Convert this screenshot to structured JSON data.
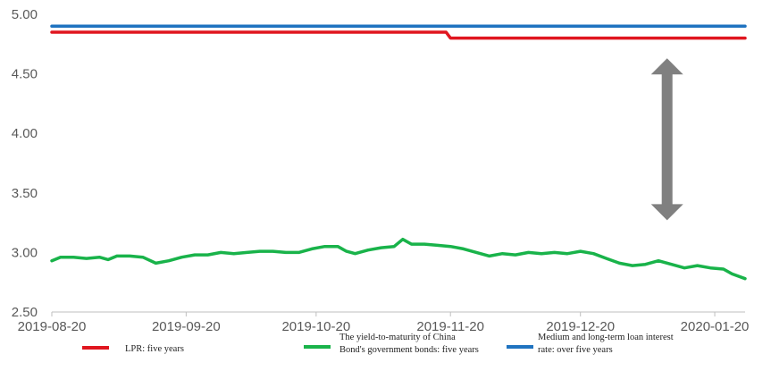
{
  "chart_data": {
    "type": "line",
    "x_domain": [
      "2019-08-20",
      "2020-01-27"
    ],
    "ylim": [
      2.5,
      5.0
    ],
    "y_ticks": [
      "2.50",
      "3.00",
      "3.50",
      "4.00",
      "4.50",
      "5.00"
    ],
    "y_tick_values": [
      2.5,
      3.0,
      3.5,
      4.0,
      4.5,
      5.0
    ],
    "x_ticks": [
      "2019-08-20",
      "2019-09-20",
      "2019-10-20",
      "2019-11-20",
      "2019-12-20",
      "2020-01-20"
    ],
    "grid": false,
    "legend_placement": "bottom",
    "series": [
      {
        "name": "LPR: five years",
        "color": "#e0161f",
        "points": [
          [
            "2019-08-20",
            4.85
          ],
          [
            "2019-11-19",
            4.85
          ],
          [
            "2019-11-20",
            4.8
          ],
          [
            "2020-01-27",
            4.8
          ]
        ]
      },
      {
        "name": "Medium and long-term loan interest rate: over five years",
        "color": "#1f73c0",
        "points": [
          [
            "2019-08-20",
            4.9
          ],
          [
            "2020-01-27",
            4.9
          ]
        ]
      },
      {
        "name": "The yield-to-maturity of China Bond's government bonds: five years",
        "color": "#19b34a",
        "points": [
          [
            "2019-08-20",
            2.93
          ],
          [
            "2019-08-22",
            2.96
          ],
          [
            "2019-08-25",
            2.96
          ],
          [
            "2019-08-28",
            2.95
          ],
          [
            "2019-08-31",
            2.96
          ],
          [
            "2019-09-02",
            2.94
          ],
          [
            "2019-09-04",
            2.97
          ],
          [
            "2019-09-07",
            2.97
          ],
          [
            "2019-09-10",
            2.96
          ],
          [
            "2019-09-13",
            2.91
          ],
          [
            "2019-09-16",
            2.93
          ],
          [
            "2019-09-19",
            2.96
          ],
          [
            "2019-09-22",
            2.98
          ],
          [
            "2019-09-25",
            2.98
          ],
          [
            "2019-09-28",
            3.0
          ],
          [
            "2019-10-01",
            2.99
          ],
          [
            "2019-10-04",
            3.0
          ],
          [
            "2019-10-07",
            3.01
          ],
          [
            "2019-10-10",
            3.01
          ],
          [
            "2019-10-13",
            3.0
          ],
          [
            "2019-10-16",
            3.0
          ],
          [
            "2019-10-19",
            3.03
          ],
          [
            "2019-10-22",
            3.05
          ],
          [
            "2019-10-25",
            3.05
          ],
          [
            "2019-10-27",
            3.01
          ],
          [
            "2019-10-29",
            2.99
          ],
          [
            "2019-11-01",
            3.02
          ],
          [
            "2019-11-04",
            3.04
          ],
          [
            "2019-11-07",
            3.05
          ],
          [
            "2019-11-09",
            3.11
          ],
          [
            "2019-11-11",
            3.07
          ],
          [
            "2019-11-14",
            3.07
          ],
          [
            "2019-11-17",
            3.06
          ],
          [
            "2019-11-20",
            3.05
          ],
          [
            "2019-11-23",
            3.03
          ],
          [
            "2019-11-26",
            3.0
          ],
          [
            "2019-11-29",
            2.97
          ],
          [
            "2019-12-02",
            2.99
          ],
          [
            "2019-12-05",
            2.98
          ],
          [
            "2019-12-08",
            3.0
          ],
          [
            "2019-12-11",
            2.99
          ],
          [
            "2019-12-14",
            3.0
          ],
          [
            "2019-12-17",
            2.99
          ],
          [
            "2019-12-20",
            3.01
          ],
          [
            "2019-12-23",
            2.99
          ],
          [
            "2019-12-26",
            2.95
          ],
          [
            "2019-12-29",
            2.91
          ],
          [
            "2020-01-01",
            2.89
          ],
          [
            "2020-01-04",
            2.9
          ],
          [
            "2020-01-07",
            2.93
          ],
          [
            "2020-01-10",
            2.9
          ],
          [
            "2020-01-13",
            2.87
          ],
          [
            "2020-01-16",
            2.89
          ],
          [
            "2020-01-19",
            2.87
          ],
          [
            "2020-01-22",
            2.86
          ],
          [
            "2020-01-24",
            2.82
          ],
          [
            "2020-01-27",
            2.78
          ]
        ]
      }
    ],
    "legend": [
      {
        "label_lines": [
          "LPR: five years"
        ],
        "color": "#e0161f"
      },
      {
        "label_lines": [
          "The yield-to-maturity of China",
          "Bond's government bonds: five years"
        ],
        "color": "#19b34a"
      },
      {
        "label_lines": [
          "Medium and long-term loan interest",
          "rate: over five years"
        ],
        "color": "#1f73c0"
      }
    ],
    "annotation": {
      "type": "double-arrow",
      "x": "2020-01-09",
      "y_from": 3.27,
      "y_to": 4.63,
      "color": "#808080"
    }
  }
}
